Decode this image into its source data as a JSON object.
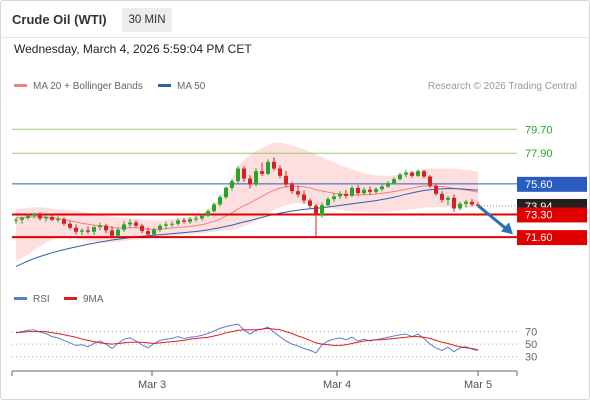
{
  "header": {
    "instrument": "Crude Oil (WTI)",
    "timeframe": "30 MIN",
    "datetime": "Wednesday, March 4, 2026 5:59:04 PM CET"
  },
  "legend": {
    "bollinger_label": "MA 20 + Bollinger Bands",
    "ma50_label": "MA 50",
    "rsi_label": "RSI",
    "rsi_ma_label": "9MA",
    "credit": "Research © 2026 Trading Central"
  },
  "colors": {
    "up": "#27a527",
    "down": "#d82020",
    "bollinger_band": "#fdd9d9",
    "ma20": "#f08080",
    "ma50": "#3060b0",
    "rsi": "#5b7fd0",
    "rsi_ma": "#e02020",
    "resistance_line": "#9acd6e",
    "pivot_line": "#2a5cc0",
    "support_line": "#e00000",
    "arrow": "#2d6fb5"
  },
  "chart_data": [
    {
      "type": "candlestick",
      "title": "Crude Oil (WTI)",
      "timeframe": "30 MIN",
      "x_ticks": [
        "Mar 3",
        "Mar 4",
        "Mar 5"
      ],
      "y_range": [
        68.3,
        82.2
      ],
      "levels": [
        {
          "value": 79.7,
          "label": "79.70",
          "kind": "resistance"
        },
        {
          "value": 77.9,
          "label": "77.90",
          "kind": "resistance"
        },
        {
          "value": 75.6,
          "label": "75.60",
          "kind": "pivot"
        },
        {
          "value": 73.3,
          "label": "73.30",
          "kind": "support"
        },
        {
          "value": 71.6,
          "label": "71.60",
          "kind": "support"
        }
      ],
      "current_price": {
        "value": 73.94,
        "label": "73.94"
      },
      "forecast_arrow": {
        "from": 73.9,
        "to": 71.8
      },
      "ohlc": [
        [
          72.85,
          73.05,
          72.6,
          72.9
        ],
        [
          72.9,
          73.15,
          72.6,
          73.05
        ],
        [
          73.05,
          73.35,
          72.9,
          73.2
        ],
        [
          73.2,
          73.45,
          73.0,
          73.35
        ],
        [
          73.35,
          73.45,
          72.85,
          73.0
        ],
        [
          73.0,
          73.3,
          72.75,
          73.1
        ],
        [
          73.1,
          73.35,
          72.8,
          72.9
        ],
        [
          72.9,
          73.15,
          72.7,
          72.95
        ],
        [
          72.95,
          73.1,
          72.45,
          72.6
        ],
        [
          72.6,
          72.8,
          72.15,
          72.3
        ],
        [
          72.3,
          72.55,
          71.8,
          72.0
        ],
        [
          72.0,
          72.25,
          71.75,
          72.1
        ],
        [
          72.1,
          72.4,
          71.85,
          72.0
        ],
        [
          72.0,
          72.45,
          71.75,
          72.35
        ],
        [
          72.35,
          72.7,
          72.1,
          72.45
        ],
        [
          72.45,
          72.6,
          71.9,
          72.1
        ],
        [
          72.1,
          72.4,
          71.5,
          71.7
        ],
        [
          71.7,
          72.3,
          71.55,
          72.15
        ],
        [
          72.15,
          72.8,
          72.0,
          72.55
        ],
        [
          72.55,
          72.95,
          72.3,
          72.7
        ],
        [
          72.7,
          72.85,
          72.3,
          72.45
        ],
        [
          72.45,
          72.6,
          71.9,
          72.05
        ],
        [
          72.05,
          72.3,
          71.6,
          71.8
        ],
        [
          71.8,
          72.3,
          71.6,
          72.15
        ],
        [
          72.15,
          72.6,
          72.0,
          72.45
        ],
        [
          72.45,
          72.75,
          72.2,
          72.55
        ],
        [
          72.55,
          72.8,
          72.35,
          72.6
        ],
        [
          72.6,
          73.0,
          72.45,
          72.85
        ],
        [
          72.85,
          73.05,
          72.6,
          72.75
        ],
        [
          72.75,
          73.1,
          72.6,
          72.95
        ],
        [
          72.95,
          73.2,
          72.75,
          73.0
        ],
        [
          73.0,
          73.35,
          72.85,
          73.2
        ],
        [
          73.2,
          73.7,
          73.1,
          73.55
        ],
        [
          73.55,
          74.2,
          73.45,
          74.05
        ],
        [
          74.05,
          74.75,
          73.9,
          74.6
        ],
        [
          74.6,
          75.4,
          74.45,
          75.3
        ],
        [
          75.3,
          75.95,
          75.1,
          75.8
        ],
        [
          75.8,
          76.95,
          75.65,
          76.75
        ],
        [
          76.75,
          76.95,
          75.75,
          76.0
        ],
        [
          76.0,
          76.25,
          75.25,
          75.55
        ],
        [
          75.55,
          76.8,
          75.4,
          76.55
        ],
        [
          76.55,
          77.2,
          76.2,
          76.35
        ],
        [
          76.35,
          77.45,
          76.25,
          77.25
        ],
        [
          77.25,
          77.6,
          76.6,
          76.75
        ],
        [
          76.75,
          77.0,
          76.0,
          76.2
        ],
        [
          76.2,
          76.55,
          75.35,
          75.55
        ],
        [
          75.55,
          75.75,
          74.85,
          75.05
        ],
        [
          75.05,
          75.45,
          74.6,
          74.8
        ],
        [
          74.8,
          75.1,
          74.1,
          74.35
        ],
        [
          74.35,
          74.5,
          73.75,
          73.95
        ],
        [
          73.95,
          74.1,
          71.6,
          73.25
        ],
        [
          73.25,
          74.2,
          73.05,
          74.0
        ],
        [
          74.0,
          74.6,
          73.85,
          74.45
        ],
        [
          74.45,
          74.9,
          74.25,
          74.65
        ],
        [
          74.65,
          75.05,
          74.45,
          74.85
        ],
        [
          74.85,
          75.15,
          74.5,
          74.7
        ],
        [
          74.7,
          75.45,
          74.6,
          75.3
        ],
        [
          75.3,
          75.5,
          74.75,
          74.9
        ],
        [
          74.9,
          75.35,
          74.75,
          75.15
        ],
        [
          75.15,
          75.4,
          74.8,
          75.0
        ],
        [
          75.0,
          75.35,
          74.85,
          75.2
        ],
        [
          75.2,
          75.55,
          75.05,
          75.4
        ],
        [
          75.4,
          75.8,
          75.3,
          75.65
        ],
        [
          75.65,
          76.1,
          75.55,
          75.95
        ],
        [
          75.95,
          76.45,
          75.85,
          76.3
        ],
        [
          76.3,
          76.65,
          76.1,
          76.45
        ],
        [
          76.45,
          76.55,
          76.05,
          76.2
        ],
        [
          76.2,
          76.7,
          76.1,
          76.55
        ],
        [
          76.55,
          76.65,
          76.0,
          76.15
        ],
        [
          76.15,
          76.25,
          75.3,
          75.45
        ],
        [
          75.45,
          75.6,
          74.7,
          74.85
        ],
        [
          74.85,
          75.05,
          74.2,
          74.4
        ],
        [
          74.4,
          74.7,
          74.0,
          74.55
        ],
        [
          74.55,
          74.8,
          73.5,
          73.75
        ],
        [
          73.75,
          74.25,
          73.6,
          74.1
        ],
        [
          74.1,
          74.4,
          73.8,
          74.25
        ],
        [
          74.25,
          74.45,
          73.9,
          74.05
        ],
        [
          74.05,
          74.25,
          73.85,
          73.94
        ]
      ],
      "ma20": [
        73.05,
        73.05,
        73.08,
        73.12,
        73.12,
        73.1,
        73.06,
        73.0,
        72.92,
        72.84,
        72.74,
        72.64,
        72.56,
        72.5,
        72.46,
        72.4,
        72.32,
        72.28,
        72.28,
        72.3,
        72.3,
        72.26,
        72.2,
        72.18,
        72.2,
        72.24,
        72.28,
        72.32,
        72.36,
        72.4,
        72.46,
        72.54,
        72.64,
        72.78,
        72.96,
        73.18,
        73.42,
        73.72,
        73.96,
        74.16,
        74.42,
        74.66,
        74.92,
        75.12,
        75.28,
        75.38,
        75.42,
        75.42,
        75.38,
        75.3,
        75.16,
        75.06,
        74.98,
        74.9,
        74.84,
        74.78,
        74.76,
        74.76,
        74.78,
        74.8,
        74.84,
        74.9,
        74.96,
        75.02,
        75.1,
        75.2,
        75.28,
        75.38,
        75.44,
        75.46,
        75.44,
        75.4,
        75.34,
        75.26,
        75.2,
        75.14,
        75.06,
        74.98
      ],
      "bb_upper": [
        73.7,
        73.75,
        73.8,
        73.85,
        73.85,
        73.8,
        73.75,
        73.7,
        73.65,
        73.6,
        73.55,
        73.5,
        73.45,
        73.35,
        73.25,
        73.2,
        73.15,
        73.1,
        73.05,
        73.0,
        72.95,
        72.9,
        72.85,
        72.85,
        72.85,
        72.9,
        72.95,
        73.0,
        73.05,
        73.1,
        73.15,
        73.3,
        73.6,
        74.05,
        74.6,
        75.3,
        76.0,
        76.9,
        77.4,
        77.8,
        78.1,
        78.3,
        78.5,
        78.7,
        78.7,
        78.6,
        78.5,
        78.35,
        78.2,
        78.0,
        77.8,
        77.6,
        77.4,
        77.2,
        77.0,
        76.85,
        76.7,
        76.55,
        76.4,
        76.3,
        76.25,
        76.2,
        76.2,
        76.25,
        76.3,
        76.4,
        76.5,
        76.6,
        76.7,
        76.75,
        76.75,
        76.75,
        76.75,
        76.75,
        76.7,
        76.65,
        76.6,
        76.5
      ],
      "bb_lower": [
        69.8,
        70.0,
        70.3,
        70.6,
        70.9,
        71.2,
        71.4,
        71.5,
        71.6,
        71.55,
        71.5,
        71.4,
        71.3,
        71.25,
        71.2,
        71.2,
        71.2,
        71.25,
        71.3,
        71.35,
        71.4,
        71.45,
        71.5,
        71.55,
        71.6,
        71.65,
        71.7,
        71.75,
        71.8,
        71.8,
        71.85,
        71.9,
        71.95,
        72.0,
        72.05,
        72.1,
        72.15,
        72.25,
        72.4,
        72.6,
        72.85,
        73.1,
        73.4,
        73.65,
        73.85,
        74.0,
        74.1,
        74.15,
        74.15,
        74.1,
        74.0,
        73.9,
        73.8,
        73.7,
        73.65,
        73.6,
        73.55,
        73.5,
        73.5,
        73.5,
        73.5,
        73.5,
        73.5,
        73.55,
        73.6,
        73.65,
        73.7,
        73.75,
        73.8,
        73.85,
        73.85,
        73.85,
        73.85,
        73.85,
        73.85,
        73.85,
        73.85,
        73.85
      ],
      "ma50": [
        69.4,
        69.6,
        69.8,
        69.98,
        70.14,
        70.28,
        70.42,
        70.54,
        70.66,
        70.76,
        70.86,
        70.96,
        71.06,
        71.14,
        71.22,
        71.3,
        71.38,
        71.44,
        71.5,
        71.56,
        71.62,
        71.66,
        71.7,
        71.74,
        71.78,
        71.82,
        71.86,
        71.9,
        71.94,
        71.98,
        72.02,
        72.08,
        72.14,
        72.22,
        72.3,
        72.4,
        72.5,
        72.62,
        72.74,
        72.84,
        72.96,
        73.08,
        73.2,
        73.3,
        73.4,
        73.48,
        73.56,
        73.62,
        73.68,
        73.72,
        73.76,
        73.8,
        73.86,
        73.92,
        73.98,
        74.04,
        74.1,
        74.16,
        74.22,
        74.28,
        74.34,
        74.42,
        74.5,
        74.6,
        74.7,
        74.82,
        74.92,
        75.02,
        75.1,
        75.16,
        75.2,
        75.22,
        75.24,
        75.24,
        75.22,
        75.2,
        75.16,
        75.12
      ]
    },
    {
      "type": "line",
      "title": "RSI",
      "y_ticks": [
        30,
        50,
        70
      ],
      "y_range": [
        20,
        90
      ],
      "series": [
        {
          "name": "RSI",
          "values": [
            68,
            70,
            72,
            73,
            69,
            67,
            62,
            60,
            56,
            52,
            48,
            49,
            46,
            51,
            55,
            50,
            43,
            51,
            58,
            60,
            55,
            49,
            44,
            51,
            56,
            58,
            59,
            62,
            59,
            61,
            62,
            64,
            67,
            71,
            75,
            78,
            80,
            82,
            73,
            66,
            72,
            74,
            77,
            69,
            62,
            55,
            50,
            47,
            43,
            40,
            36,
            49,
            55,
            58,
            60,
            57,
            61,
            55,
            58,
            55,
            57,
            59,
            61,
            63,
            65,
            66,
            62,
            66,
            59,
            50,
            44,
            40,
            45,
            38,
            44,
            46,
            42,
            40
          ]
        },
        {
          "name": "9MA",
          "values": [
            68,
            69,
            70,
            70,
            70,
            70,
            68,
            67,
            65,
            63,
            61,
            58,
            56,
            54,
            52,
            51,
            50,
            51,
            52,
            53,
            53,
            53,
            52,
            51,
            52,
            53,
            54,
            55,
            56,
            58,
            59,
            60,
            61,
            63,
            65,
            68,
            70,
            72,
            73,
            73,
            73,
            74,
            75,
            74,
            73,
            70,
            67,
            63,
            60,
            56,
            52,
            50,
            49,
            48,
            48,
            49,
            51,
            53,
            55,
            56,
            57,
            57,
            58,
            59,
            60,
            61,
            62,
            62,
            61,
            59,
            56,
            53,
            51,
            48,
            46,
            44,
            43,
            41
          ]
        }
      ]
    }
  ]
}
